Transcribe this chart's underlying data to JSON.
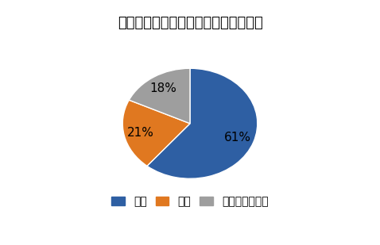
{
  "title": "ヴェゼルのエクステリア・満足度調査",
  "labels": [
    "満足",
    "不満",
    "どちらでもない"
  ],
  "values": [
    61,
    21,
    18
  ],
  "colors": [
    "#2E5FA3",
    "#E07820",
    "#9E9E9E"
  ],
  "autopct_labels": [
    "61%",
    "21%",
    "18%"
  ],
  "legend_labels": [
    "満足",
    "不満",
    "どちらでもない"
  ],
  "start_angle": 90,
  "title_fontsize": 13,
  "label_fontsize": 11,
  "legend_fontsize": 10,
  "background_color": "#ffffff"
}
